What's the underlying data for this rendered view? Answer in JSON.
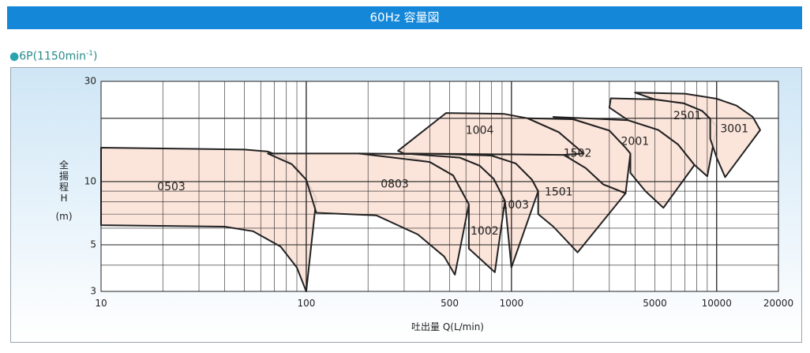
{
  "header": {
    "title": "60Hz 容量図"
  },
  "subtitle": {
    "bullet": "●",
    "text": "6P(1150min",
    "sup": "-1",
    "close": ")"
  },
  "colors": {
    "banner": "#1487d8",
    "region_fill": "#fbe1d6",
    "region_stroke": "#222222",
    "panel_top": "#cfe6f6"
  },
  "chart_data": {
    "type": "area",
    "title": "",
    "xlabel": "吐出量 Q(L/min)",
    "ylabel_chars": [
      "全",
      "揚",
      "程",
      "H"
    ],
    "ylabel_unit": "(m)",
    "x_scale": "log",
    "y_scale": "log",
    "xlim": [
      10,
      20000
    ],
    "ylim": [
      3,
      30
    ],
    "x_ticks": [
      {
        "value": 10,
        "label": "10"
      },
      {
        "value": 100,
        "label": "100"
      },
      {
        "value": 500,
        "label": "500"
      },
      {
        "value": 1000,
        "label": "1000"
      },
      {
        "value": 5000,
        "label": "5000"
      },
      {
        "value": 10000,
        "label": "10000"
      },
      {
        "value": 20000,
        "label": "20000"
      }
    ],
    "y_ticks": [
      {
        "value": 3,
        "label": "3"
      },
      {
        "value": 5,
        "label": "5"
      },
      {
        "value": 10,
        "label": "10"
      },
      {
        "value": 30,
        "label": "30"
      }
    ],
    "grid": true,
    "series": [
      {
        "name": "0503",
        "label_at": [
          22,
          9.4
        ],
        "boundary": [
          [
            10,
            14.5
          ],
          [
            50,
            14.2
          ],
          [
            65,
            13.9
          ],
          [
            78,
            13.0
          ],
          [
            90,
            11.6
          ],
          [
            100,
            10.2
          ],
          [
            112,
            8.3
          ],
          [
            100,
            3.0
          ],
          [
            90,
            3.9
          ],
          [
            75,
            4.9
          ],
          [
            55,
            5.8
          ],
          [
            40,
            6.1
          ],
          [
            10,
            6.2
          ]
        ]
      },
      {
        "name": "0803",
        "label_at": [
          270,
          9.7
        ],
        "boundary": [
          [
            65,
            13.6
          ],
          [
            180,
            13.6
          ],
          [
            300,
            13.3
          ],
          [
            400,
            12.4
          ],
          [
            520,
            10.7
          ],
          [
            620,
            7.8
          ],
          [
            530,
            3.6
          ],
          [
            470,
            4.4
          ],
          [
            350,
            5.6
          ],
          [
            220,
            6.9
          ],
          [
            112,
            7.1
          ],
          [
            100,
            10.2
          ],
          [
            85,
            12.1
          ]
        ]
      },
      {
        "name": "1002",
        "label_at": [
          740,
          5.8
        ],
        "boundary": [
          [
            180,
            13.6
          ],
          [
            400,
            13.5
          ],
          [
            560,
            13.0
          ],
          [
            700,
            11.9
          ],
          [
            820,
            10.3
          ],
          [
            930,
            8.1
          ],
          [
            830,
            3.7
          ],
          [
            620,
            4.8
          ],
          [
            620,
            7.8
          ],
          [
            520,
            10.7
          ],
          [
            400,
            12.4
          ]
        ]
      },
      {
        "name": "1003",
        "label_at": [
          1040,
          7.7
        ],
        "boundary": [
          [
            300,
            13.6
          ],
          [
            600,
            13.6
          ],
          [
            800,
            13.3
          ],
          [
            1050,
            12.2
          ],
          [
            1260,
            10.2
          ],
          [
            1350,
            9.0
          ],
          [
            1000,
            3.9
          ],
          [
            930,
            8.1
          ],
          [
            820,
            10.3
          ],
          [
            700,
            11.9
          ],
          [
            560,
            13.0
          ]
        ]
      },
      {
        "name": "1501",
        "label_at": [
          1700,
          8.9
        ],
        "boundary": [
          [
            400,
            13.6
          ],
          [
            1800,
            13.4
          ],
          [
            2300,
            11.6
          ],
          [
            2800,
            9.7
          ],
          [
            3600,
            8.8
          ],
          [
            2100,
            4.6
          ],
          [
            1600,
            6.1
          ],
          [
            1350,
            7.0
          ],
          [
            1350,
            9.0
          ],
          [
            1260,
            10.2
          ],
          [
            1050,
            12.2
          ],
          [
            800,
            13.3
          ]
        ]
      },
      {
        "name": "1004",
        "label_at": [
          700,
          17.5
        ],
        "boundary": [
          [
            480,
            21.2
          ],
          [
            920,
            21.0
          ],
          [
            1200,
            20.0
          ],
          [
            1700,
            17.2
          ],
          [
            2250,
            13.6
          ],
          [
            2000,
            13.5
          ],
          [
            1800,
            13.4
          ],
          [
            300,
            13.6
          ],
          [
            280,
            14.0
          ]
        ]
      },
      {
        "name": "1502",
        "label_at": [
          2100,
          13.6
        ],
        "boundary": [
          [
            1200,
            20.0
          ],
          [
            2000,
            19.8
          ],
          [
            3000,
            17.5
          ],
          [
            3600,
            14.5
          ],
          [
            3800,
            13.6
          ],
          [
            3600,
            8.8
          ],
          [
            2800,
            9.7
          ],
          [
            2300,
            11.6
          ],
          [
            1800,
            13.4
          ],
          [
            2250,
            13.6
          ],
          [
            1700,
            17.2
          ]
        ]
      },
      {
        "name": "2001",
        "label_at": [
          4000,
          15.5
        ],
        "boundary": [
          [
            1600,
            20.3
          ],
          [
            3700,
            19.6
          ],
          [
            5200,
            17.6
          ],
          [
            6500,
            15.0
          ],
          [
            7800,
            12.0
          ],
          [
            5500,
            7.5
          ],
          [
            4500,
            9.0
          ],
          [
            3800,
            11.0
          ],
          [
            3800,
            13.6
          ],
          [
            3600,
            14.5
          ],
          [
            3000,
            17.5
          ],
          [
            2000,
            19.8
          ]
        ]
      },
      {
        "name": "2501",
        "label_at": [
          7200,
          20.5
        ],
        "boundary": [
          [
            3050,
            24.9
          ],
          [
            5000,
            24.6
          ],
          [
            6900,
            23.6
          ],
          [
            8500,
            21.7
          ],
          [
            9300,
            19.9
          ],
          [
            10000,
            18.3
          ],
          [
            9000,
            10.6
          ],
          [
            7800,
            12.0
          ],
          [
            6500,
            15.0
          ],
          [
            5200,
            17.6
          ],
          [
            3700,
            19.6
          ],
          [
            3000,
            22.5
          ]
        ]
      },
      {
        "name": "3001",
        "label_at": [
          12200,
          17.8
        ],
        "boundary": [
          [
            4000,
            26.5
          ],
          [
            7000,
            26.2
          ],
          [
            10000,
            24.8
          ],
          [
            12500,
            23.0
          ],
          [
            15000,
            20.3
          ],
          [
            16300,
            17.6
          ],
          [
            11000,
            10.5
          ],
          [
            10000,
            13.0
          ],
          [
            9300,
            16.0
          ],
          [
            9300,
            19.9
          ],
          [
            8500,
            21.7
          ],
          [
            6900,
            23.6
          ],
          [
            5000,
            24.6
          ]
        ]
      }
    ]
  }
}
